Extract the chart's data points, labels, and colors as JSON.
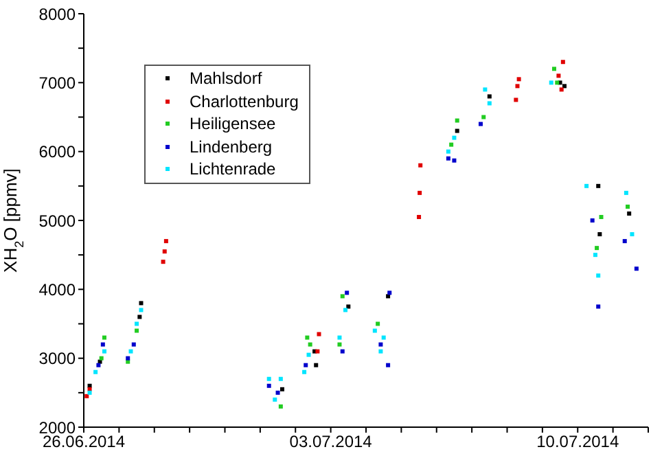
{
  "chart_data": {
    "type": "scatter",
    "ylabel": "XH$_{2}$O [ppmv]",
    "marker": "square",
    "legend": "top left",
    "grid": false,
    "xlim": [
      "2014-06-26",
      "2014-07-12"
    ],
    "xticks": [
      {
        "value": "2014-06-26",
        "label": "26.06.2014"
      },
      {
        "value": "2014-06-27",
        "label": null
      },
      {
        "value": "2014-06-28",
        "label": null
      },
      {
        "value": "2014-06-29",
        "label": null
      },
      {
        "value": "2014-06-30",
        "label": null
      },
      {
        "value": "2014-07-01",
        "label": null
      },
      {
        "value": "2014-07-02",
        "label": null
      },
      {
        "value": "2014-07-03",
        "label": "03.07.2014"
      },
      {
        "value": "2014-07-04",
        "label": null
      },
      {
        "value": "2014-07-05",
        "label": null
      },
      {
        "value": "2014-07-06",
        "label": null
      },
      {
        "value": "2014-07-07",
        "label": null
      },
      {
        "value": "2014-07-08",
        "label": null
      },
      {
        "value": "2014-07-09",
        "label": null
      },
      {
        "value": "2014-07-10",
        "label": "10.07.2014"
      },
      {
        "value": "2014-07-11",
        "label": null
      },
      {
        "value": "2014-07-12",
        "label": null
      }
    ],
    "ylim": [
      2000,
      8000
    ],
    "yticks": [
      2000,
      {
        "value": 2500,
        "label": null
      },
      3000,
      {
        "value": 3500,
        "label": null
      },
      4000,
      {
        "value": 4500,
        "label": null
      },
      5000,
      {
        "value": 5500,
        "label": null
      },
      6000,
      {
        "value": 6500,
        "label": null
      },
      7000,
      {
        "value": 7500,
        "label": null
      },
      8000
    ],
    "series": [
      {
        "name": "Mahlsdorf",
        "color": "#000000",
        "x": [
          "2014-06-26T04:00",
          "2014-06-26T11:00",
          "2014-06-27T14:00",
          "2014-06-27T15:00",
          "2014-07-01T15:00",
          "2014-07-02T13:00",
          "2014-07-02T14:00",
          "2014-07-03T12:00",
          "2014-07-04T15:00",
          "2014-07-06T14:00",
          "2014-07-07T12:00",
          "2014-07-09T12:00",
          "2014-07-09T15:00",
          "2014-07-10T14:00",
          "2014-07-10T15:00",
          "2014-07-11T11:00"
        ],
        "values": [
          2600,
          2950,
          3600,
          3800,
          2550,
          3100,
          2900,
          3750,
          3900,
          6300,
          6800,
          7000,
          6950,
          5500,
          4800,
          5100
        ]
      },
      {
        "name": "Charlottenburg",
        "color": "#e00000",
        "x": [
          "2014-06-26T02:00",
          "2014-06-26T04:00",
          "2014-06-28T06:00",
          "2014-06-28T07:00",
          "2014-06-28T08:00",
          "2014-07-02T15:00",
          "2014-07-02T16:00",
          "2014-07-05T12:00",
          "2014-07-05T12:30",
          "2014-07-05T13:00",
          "2014-07-08T06:00",
          "2014-07-08T07:00",
          "2014-07-08T08:00",
          "2014-07-09T11:00",
          "2014-07-09T13:00",
          "2014-07-09T14:00"
        ],
        "values": [
          2450,
          2550,
          4400,
          4550,
          4700,
          3100,
          3350,
          5050,
          5400,
          5800,
          6750,
          6950,
          7050,
          7100,
          6900,
          7300
        ]
      },
      {
        "name": "Heiligensee",
        "color": "#22cc22",
        "x": [
          "2014-06-26T12:00",
          "2014-06-26T14:00",
          "2014-06-27T06:00",
          "2014-06-27T12:00",
          "2014-07-01T14:00",
          "2014-07-02T08:00",
          "2014-07-02T10:00",
          "2014-07-03T06:00",
          "2014-07-03T08:00",
          "2014-07-04T08:00",
          "2014-07-06T10:00",
          "2014-07-06T14:00",
          "2014-07-07T08:00",
          "2014-07-09T08:00",
          "2014-07-09T10:00",
          "2014-07-10T16:00",
          "2014-07-10T13:00",
          "2014-07-11T10:00"
        ],
        "values": [
          3000,
          3300,
          2950,
          3400,
          2300,
          3300,
          3200,
          3200,
          3900,
          3500,
          6100,
          6450,
          6500,
          7200,
          7000,
          5050,
          4600,
          5200
        ]
      },
      {
        "name": "Lindenberg",
        "color": "#0000cc",
        "x": [
          "2014-06-26T10:00",
          "2014-06-26T13:00",
          "2014-06-27T06:00",
          "2014-06-27T10:00",
          "2014-07-01T06:00",
          "2014-07-01T12:00",
          "2014-07-02T07:00",
          "2014-07-03T08:00",
          "2014-07-03T11:00",
          "2014-07-04T10:00",
          "2014-07-04T15:00",
          "2014-07-04T16:00",
          "2014-07-06T08:00",
          "2014-07-06T12:00",
          "2014-07-07T06:00",
          "2014-07-10T10:00",
          "2014-07-10T14:00",
          "2014-07-11T08:00",
          "2014-07-11T16:00"
        ],
        "values": [
          2900,
          3200,
          3000,
          3200,
          2600,
          2500,
          2900,
          3100,
          3950,
          3200,
          2900,
          3950,
          5900,
          5870,
          6400,
          5000,
          3750,
          4700,
          4300
        ]
      },
      {
        "name": "Lichtenrade",
        "color": "#00e5ff",
        "x": [
          "2014-06-26T04:00",
          "2014-06-26T08:00",
          "2014-06-26T14:00",
          "2014-06-27T08:00",
          "2014-06-27T12:00",
          "2014-06-27T15:00",
          "2014-07-01T06:00",
          "2014-07-01T10:00",
          "2014-07-01T14:00",
          "2014-07-02T06:00",
          "2014-07-02T09:00",
          "2014-07-03T06:00",
          "2014-07-03T10:00",
          "2014-07-04T06:00",
          "2014-07-04T10:00",
          "2014-07-04T12:00",
          "2014-07-06T08:00",
          "2014-07-06T12:00",
          "2014-07-07T09:00",
          "2014-07-07T12:00",
          "2014-07-09T06:00",
          "2014-07-10T06:00",
          "2014-07-10T12:00",
          "2014-07-10T14:00",
          "2014-07-11T09:00",
          "2014-07-11T13:00"
        ],
        "values": [
          2500,
          2800,
          3100,
          3100,
          3500,
          3700,
          2700,
          2400,
          2700,
          2800,
          3050,
          3300,
          3700,
          3400,
          3100,
          3300,
          6000,
          6200,
          6900,
          6700,
          7000,
          5500,
          4500,
          4200,
          5400,
          4800
        ]
      }
    ]
  }
}
